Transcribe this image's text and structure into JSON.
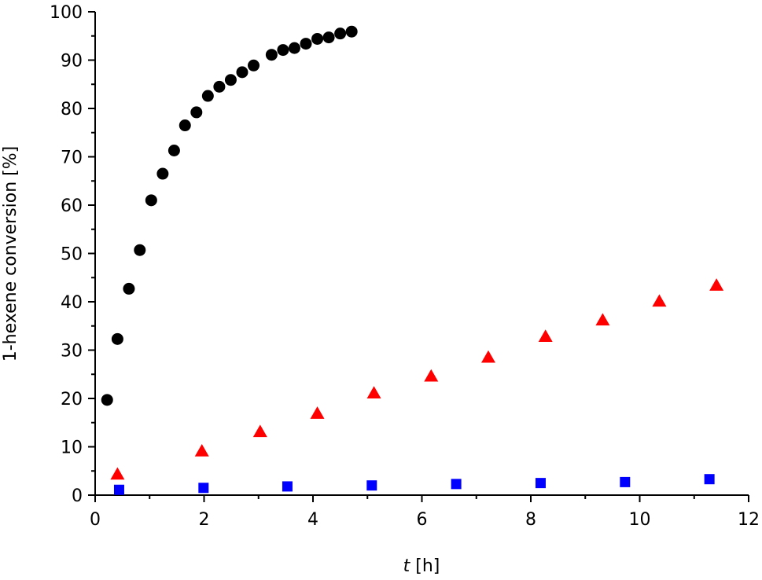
{
  "chart_data": {
    "type": "scatter",
    "title": "",
    "xlabel_italic": "t",
    "xlabel_rest": " [h]",
    "ylabel": "1-hexene conversion [%]",
    "xlim": [
      0,
      12
    ],
    "ylim": [
      0,
      100
    ],
    "x_ticks": [
      0,
      2,
      4,
      6,
      8,
      10,
      12
    ],
    "y_ticks": [
      0,
      10,
      20,
      30,
      40,
      50,
      60,
      70,
      80,
      90,
      100
    ],
    "x_minor_step": 1,
    "y_minor_step": 5,
    "grid": false,
    "legend": "none",
    "series": [
      {
        "marker": "circle",
        "color": "#000000",
        "x": [
          0.22,
          0.41,
          0.62,
          0.82,
          1.03,
          1.24,
          1.45,
          1.65,
          1.86,
          2.07,
          2.28,
          2.49,
          2.7,
          2.91,
          3.24,
          3.45,
          3.66,
          3.87,
          4.08,
          4.29,
          4.5,
          4.71
        ],
        "y": [
          19.7,
          32.3,
          42.7,
          50.7,
          61.0,
          66.5,
          71.3,
          76.5,
          79.2,
          82.6,
          84.5,
          85.9,
          87.5,
          88.9,
          91.1,
          92.1,
          92.5,
          93.4,
          94.4,
          94.7,
          95.5,
          95.9
        ]
      },
      {
        "marker": "triangle",
        "color": "#ff0000",
        "x": [
          0.41,
          1.96,
          3.03,
          4.08,
          5.12,
          6.17,
          7.22,
          8.27,
          9.32,
          10.36,
          11.41
        ],
        "y": [
          4.3,
          9.1,
          13.1,
          16.9,
          21.1,
          24.6,
          28.5,
          32.8,
          36.2,
          40.1,
          43.4
        ]
      },
      {
        "marker": "square",
        "color": "#0000ff",
        "x": [
          0.44,
          1.99,
          3.53,
          5.08,
          6.63,
          8.18,
          9.73,
          11.28
        ],
        "y": [
          1.1,
          1.5,
          1.8,
          2.0,
          2.3,
          2.5,
          2.7,
          3.3
        ]
      }
    ]
  }
}
